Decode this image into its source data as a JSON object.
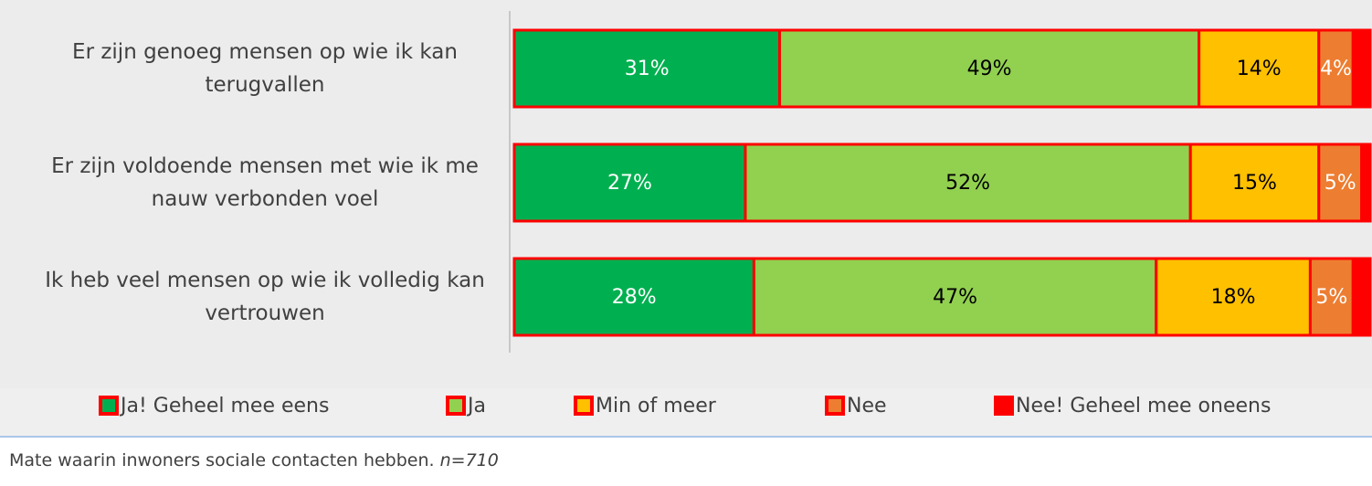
{
  "chart_data": {
    "type": "stacked-bar-horizontal",
    "categories": [
      "Er zijn genoeg mensen op wie ik kan terugvallen",
      "Er zijn voldoende mensen met wie ik me nauw verbonden voel",
      "Ik heb veel mensen op wie ik volledig kan vertrouwen"
    ],
    "series": [
      {
        "name": "Ja! Geheel mee eens",
        "color": "#00b050",
        "label_color": "#ffffff",
        "values": [
          31,
          27,
          28
        ],
        "value_labels": [
          "31%",
          "27%",
          "28%"
        ]
      },
      {
        "name": "Ja",
        "color": "#92d050",
        "label_color": "#000000",
        "values": [
          49,
          52,
          47
        ],
        "value_labels": [
          "49%",
          "52%",
          "47%"
        ]
      },
      {
        "name": "Min of meer",
        "color": "#ffc000",
        "label_color": "#000000",
        "values": [
          14,
          15,
          18
        ],
        "value_labels": [
          "14%",
          "15%",
          "18%"
        ]
      },
      {
        "name": "Nee",
        "color": "#ed7d31",
        "label_color": "#ffffff",
        "values": [
          4,
          5,
          5
        ],
        "value_labels": [
          "4%",
          "5%",
          "5%"
        ]
      },
      {
        "name": "Nee! Geheel mee oneens",
        "color": "#ff0000",
        "values": [
          2,
          1,
          2
        ]
      }
    ],
    "xlim": [
      0,
      100
    ],
    "segment_border": "#ff0000",
    "caption": "Mate waarin inwoners sociale contacten hebben.",
    "caption_n": "n=710"
  }
}
